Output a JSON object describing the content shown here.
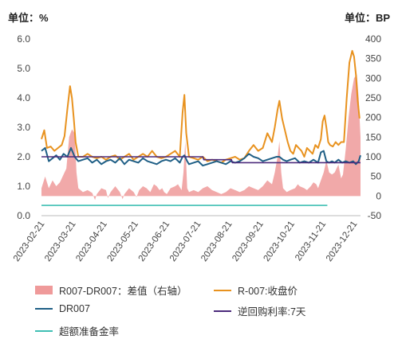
{
  "units": {
    "left": "单位：%",
    "right": "单位：BP"
  },
  "chart_data": {
    "type": "line",
    "y_left": {
      "ticks": [
        "0.0",
        "1.0",
        "2.0",
        "3.0",
        "4.0",
        "5.0",
        "6.0"
      ],
      "ylim": [
        0,
        6
      ]
    },
    "y_right": {
      "ticks": [
        "-50",
        "0",
        "50",
        "100",
        "150",
        "200",
        "250",
        "300",
        "350",
        "400"
      ],
      "ylim": [
        -50,
        400
      ]
    },
    "x_ticks": [
      "2023-02-21",
      "2023-03-21",
      "2023-04-21",
      "2023-05-21",
      "2023-06-21",
      "2023-07-21",
      "2023-08-21",
      "2023-09-21",
      "2023-10-21",
      "2023-11-21",
      "2023-12-21"
    ],
    "series": [
      {
        "name": "R007-DR007：差值（右轴）",
        "type": "area",
        "axis": "right",
        "color": "#ef9a9a",
        "points": [
          [
            0,
            20
          ],
          [
            4,
            50
          ],
          [
            8,
            20
          ],
          [
            12,
            40
          ],
          [
            16,
            25
          ],
          [
            20,
            35
          ],
          [
            24,
            55
          ],
          [
            27,
            70
          ],
          [
            30,
            150
          ],
          [
            33,
            170
          ],
          [
            36,
            160
          ],
          [
            38,
            60
          ],
          [
            40,
            20
          ],
          [
            45,
            10
          ],
          [
            50,
            15
          ],
          [
            55,
            8
          ],
          [
            58,
            -10
          ],
          [
            60,
            5
          ],
          [
            65,
            20
          ],
          [
            70,
            15
          ],
          [
            72,
            -5
          ],
          [
            75,
            10
          ],
          [
            80,
            25
          ],
          [
            85,
            10
          ],
          [
            88,
            -8
          ],
          [
            90,
            5
          ],
          [
            95,
            20
          ],
          [
            100,
            10
          ],
          [
            103,
            -3
          ],
          [
            106,
            15
          ],
          [
            110,
            25
          ],
          [
            114,
            20
          ],
          [
            118,
            10
          ],
          [
            122,
            30
          ],
          [
            125,
            25
          ],
          [
            128,
            15
          ],
          [
            131,
            20
          ],
          [
            133,
            10
          ],
          [
            136,
            5
          ],
          [
            140,
            20
          ],
          [
            145,
            25
          ],
          [
            148,
            30
          ],
          [
            152,
            15
          ],
          [
            154,
            60
          ],
          [
            156,
            140
          ],
          [
            158,
            20
          ],
          [
            160,
            10
          ],
          [
            165,
            15
          ],
          [
            170,
            10
          ],
          [
            175,
            20
          ],
          [
            180,
            25
          ],
          [
            185,
            15
          ],
          [
            190,
            10
          ],
          [
            195,
            5
          ],
          [
            200,
            10
          ],
          [
            205,
            20
          ],
          [
            210,
            15
          ],
          [
            215,
            10
          ],
          [
            220,
            15
          ],
          [
            225,
            25
          ],
          [
            230,
            20
          ],
          [
            235,
            15
          ],
          [
            240,
            25
          ],
          [
            245,
            40
          ],
          [
            250,
            30
          ],
          [
            253,
            60
          ],
          [
            256,
            100
          ],
          [
            258,
            140
          ],
          [
            260,
            60
          ],
          [
            262,
            20
          ],
          [
            266,
            10
          ],
          [
            270,
            15
          ],
          [
            275,
            20
          ],
          [
            278,
            30
          ],
          [
            280,
            25
          ],
          [
            285,
            20
          ],
          [
            288,
            15
          ],
          [
            292,
            25
          ],
          [
            295,
            35
          ],
          [
            298,
            30
          ],
          [
            300,
            20
          ],
          [
            303,
            40
          ],
          [
            306,
            60
          ],
          [
            309,
            90
          ],
          [
            312,
            60
          ],
          [
            315,
            55
          ],
          [
            318,
            60
          ],
          [
            320,
            70
          ],
          [
            322,
            80
          ],
          [
            325,
            45
          ],
          [
            327,
            55
          ],
          [
            330,
            120
          ],
          [
            333,
            200
          ],
          [
            336,
            260
          ],
          [
            339,
            300
          ],
          [
            342,
            310
          ],
          [
            344,
            250
          ],
          [
            346,
            150
          ]
        ]
      },
      {
        "name": "R-007:收盘价",
        "type": "line",
        "axis": "left",
        "color": "#e8921f",
        "points": [
          [
            0,
            2.6
          ],
          [
            3,
            2.9
          ],
          [
            6,
            2.3
          ],
          [
            10,
            2.35
          ],
          [
            14,
            2.2
          ],
          [
            18,
            2.3
          ],
          [
            22,
            2.4
          ],
          [
            25,
            2.7
          ],
          [
            28,
            3.6
          ],
          [
            31,
            4.4
          ],
          [
            33,
            4.0
          ],
          [
            35,
            3.3
          ],
          [
            37,
            2.5
          ],
          [
            40,
            2.0
          ],
          [
            45,
            2.0
          ],
          [
            50,
            2.1
          ],
          [
            55,
            2.0
          ],
          [
            60,
            1.95
          ],
          [
            65,
            2.0
          ],
          [
            70,
            1.9
          ],
          [
            75,
            2.0
          ],
          [
            80,
            2.05
          ],
          [
            85,
            1.9
          ],
          [
            90,
            2.0
          ],
          [
            95,
            2.1
          ],
          [
            100,
            1.9
          ],
          [
            105,
            2.0
          ],
          [
            110,
            2.1
          ],
          [
            115,
            2.0
          ],
          [
            120,
            2.2
          ],
          [
            125,
            2.0
          ],
          [
            130,
            1.95
          ],
          [
            135,
            2.0
          ],
          [
            140,
            2.1
          ],
          [
            145,
            2.2
          ],
          [
            150,
            2.0
          ],
          [
            153,
            3.5
          ],
          [
            155,
            4.1
          ],
          [
            157,
            2.8
          ],
          [
            160,
            2.0
          ],
          [
            165,
            1.95
          ],
          [
            170,
            1.9
          ],
          [
            175,
            2.0
          ],
          [
            180,
            1.85
          ],
          [
            185,
            1.9
          ],
          [
            190,
            1.85
          ],
          [
            195,
            1.8
          ],
          [
            200,
            1.9
          ],
          [
            205,
            1.95
          ],
          [
            210,
            2.0
          ],
          [
            215,
            1.9
          ],
          [
            220,
            1.95
          ],
          [
            225,
            2.2
          ],
          [
            230,
            2.4
          ],
          [
            235,
            2.2
          ],
          [
            240,
            2.3
          ],
          [
            245,
            2.8
          ],
          [
            250,
            2.5
          ],
          [
            253,
            3.0
          ],
          [
            256,
            3.6
          ],
          [
            258,
            3.9
          ],
          [
            261,
            3.3
          ],
          [
            264,
            2.9
          ],
          [
            267,
            2.5
          ],
          [
            270,
            2.2
          ],
          [
            273,
            2.1
          ],
          [
            276,
            2.4
          ],
          [
            279,
            2.3
          ],
          [
            282,
            2.2
          ],
          [
            285,
            2.0
          ],
          [
            288,
            2.3
          ],
          [
            291,
            2.2
          ],
          [
            294,
            2.1
          ],
          [
            297,
            2.4
          ],
          [
            300,
            2.3
          ],
          [
            303,
            2.6
          ],
          [
            305,
            3.2
          ],
          [
            307,
            3.4
          ],
          [
            309,
            3.0
          ],
          [
            311,
            2.5
          ],
          [
            313,
            2.4
          ],
          [
            316,
            2.35
          ],
          [
            319,
            2.5
          ],
          [
            322,
            2.4
          ],
          [
            325,
            2.5
          ],
          [
            328,
            2.5
          ],
          [
            331,
            4.0
          ],
          [
            334,
            5.2
          ],
          [
            337,
            5.6
          ],
          [
            339,
            5.4
          ],
          [
            341,
            4.8
          ],
          [
            343,
            3.9
          ],
          [
            345,
            3.3
          ]
        ]
      },
      {
        "name": "DR007",
        "type": "line",
        "axis": "left",
        "color": "#1f5f86",
        "points": [
          [
            0,
            2.2
          ],
          [
            4,
            2.3
          ],
          [
            8,
            1.85
          ],
          [
            12,
            1.95
          ],
          [
            16,
            2.05
          ],
          [
            20,
            1.9
          ],
          [
            24,
            2.1
          ],
          [
            28,
            2.0
          ],
          [
            32,
            2.3
          ],
          [
            36,
            2.0
          ],
          [
            40,
            1.85
          ],
          [
            45,
            1.9
          ],
          [
            50,
            1.95
          ],
          [
            55,
            1.8
          ],
          [
            60,
            1.9
          ],
          [
            65,
            1.75
          ],
          [
            70,
            1.85
          ],
          [
            75,
            1.9
          ],
          [
            80,
            1.8
          ],
          [
            85,
            1.95
          ],
          [
            90,
            1.75
          ],
          [
            95,
            1.9
          ],
          [
            100,
            1.85
          ],
          [
            105,
            1.8
          ],
          [
            110,
            1.95
          ],
          [
            115,
            1.85
          ],
          [
            120,
            1.8
          ],
          [
            125,
            1.75
          ],
          [
            130,
            1.85
          ],
          [
            135,
            1.9
          ],
          [
            140,
            1.85
          ],
          [
            145,
            1.95
          ],
          [
            150,
            1.8
          ],
          [
            153,
            2.0
          ],
          [
            155,
            2.05
          ],
          [
            158,
            1.85
          ],
          [
            160,
            1.75
          ],
          [
            165,
            1.8
          ],
          [
            170,
            1.85
          ],
          [
            175,
            1.7
          ],
          [
            180,
            1.75
          ],
          [
            185,
            1.8
          ],
          [
            190,
            1.85
          ],
          [
            195,
            1.8
          ],
          [
            200,
            1.75
          ],
          [
            205,
            1.85
          ],
          [
            210,
            1.8
          ],
          [
            215,
            1.85
          ],
          [
            220,
            1.95
          ],
          [
            225,
            2.1
          ],
          [
            230,
            2.0
          ],
          [
            235,
            1.95
          ],
          [
            240,
            1.85
          ],
          [
            245,
            1.9
          ],
          [
            250,
            1.95
          ],
          [
            255,
            2.0
          ],
          [
            258,
            2.0
          ],
          [
            262,
            1.9
          ],
          [
            266,
            1.85
          ],
          [
            270,
            1.9
          ],
          [
            275,
            1.95
          ],
          [
            280,
            1.8
          ],
          [
            285,
            1.85
          ],
          [
            290,
            1.8
          ],
          [
            295,
            1.9
          ],
          [
            300,
            1.8
          ],
          [
            303,
            2.15
          ],
          [
            306,
            2.2
          ],
          [
            309,
            1.85
          ],
          [
            312,
            1.8
          ],
          [
            315,
            1.85
          ],
          [
            318,
            1.8
          ],
          [
            322,
            1.9
          ],
          [
            326,
            1.8
          ],
          [
            330,
            1.85
          ],
          [
            334,
            1.8
          ],
          [
            338,
            1.85
          ],
          [
            341,
            1.75
          ],
          [
            344,
            1.85
          ],
          [
            346,
            2.05
          ]
        ]
      },
      {
        "name": "逆回购利率:7天",
        "type": "line",
        "axis": "left",
        "color": "#4b2a7b",
        "points": [
          [
            0,
            2.0
          ],
          [
            175,
            2.0
          ],
          [
            176,
            1.9
          ],
          [
            206,
            1.9
          ],
          [
            207,
            1.8
          ],
          [
            346,
            1.8
          ]
        ]
      },
      {
        "name": "超额准备金率",
        "type": "line",
        "axis": "left",
        "color": "#3fbfb3",
        "points": [
          [
            0,
            0.35
          ],
          [
            310,
            0.35
          ]
        ]
      }
    ],
    "legend_placement": "bottom"
  }
}
